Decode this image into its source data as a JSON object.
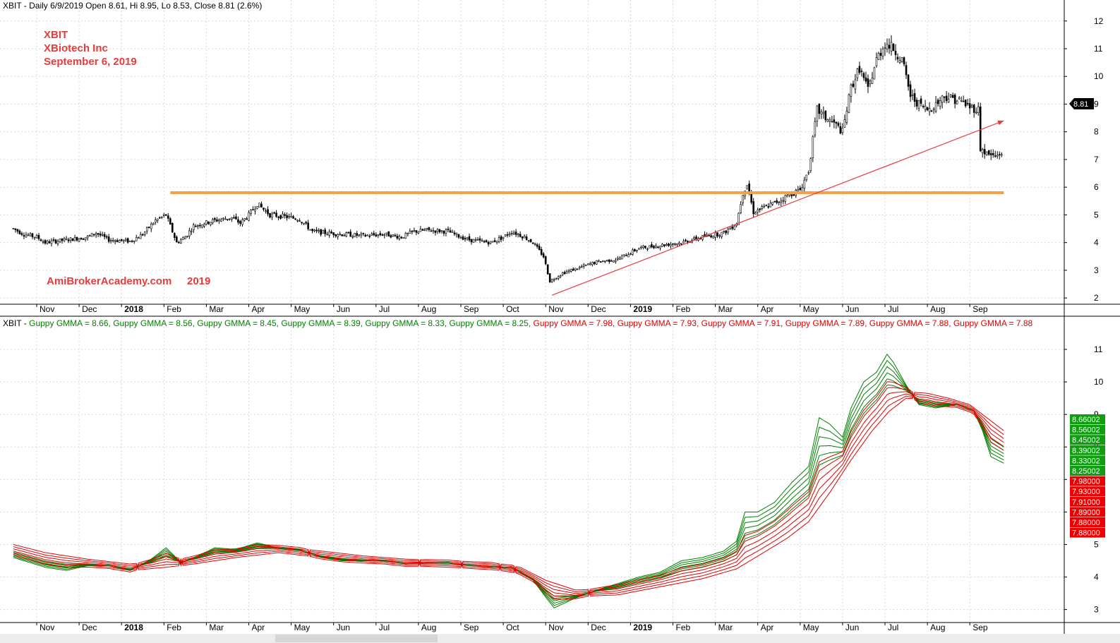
{
  "header": {
    "top": "XBIT - Daily 6/9/2019 Open 8.61, Hi 8.95, Lo 8.53, Close 8.81 (2.6%)",
    "bottom_prefix": "XBIT - ",
    "bottom_items": [
      {
        "text": "Guppy GMMA = 8.66,",
        "color": "#008000"
      },
      {
        "text": "Guppy GMMA = 8.56,",
        "color": "#008000"
      },
      {
        "text": "Guppy GMMA = 8.45,",
        "color": "#008000"
      },
      {
        "text": "Guppy GMMA = 8.39,",
        "color": "#008000"
      },
      {
        "text": "Guppy GMMA = 8.33,",
        "color": "#008000"
      },
      {
        "text": "Guppy GMMA = 8.25,",
        "color": "#008000"
      },
      {
        "text": "Guppy GMMA = 7.98,",
        "color": "#e00000"
      },
      {
        "text": "Guppy GMMA = 7.93,",
        "color": "#e00000"
      },
      {
        "text": "Guppy GMMA = 7.91,",
        "color": "#e00000"
      },
      {
        "text": "Guppy GMMA = 7.89,",
        "color": "#e00000"
      },
      {
        "text": "Guppy GMMA = 7.88,",
        "color": "#e00000"
      },
      {
        "text": "Guppy GMMA = 7.88",
        "color": "#e00000"
      }
    ]
  },
  "annotations": {
    "ticker": "XBIT",
    "company": "XBiotech Inc",
    "date": "September 6, 2019",
    "watermark": "AmiBrokerAcademy.com",
    "watermark_year": "2019",
    "color": "#e63c3c"
  },
  "chart_data": [
    {
      "type": "candlestick",
      "title": "XBIT - Daily 6/9/2019 Open 8.61, Hi 8.95, Lo 8.53, Close 8.81 (2.6%)",
      "x_unit": "months since Nov 2017 tick",
      "x_range": [
        -0.75,
        22.6
      ],
      "ylim": [
        1.8,
        12.3
      ],
      "y_ticks": [
        2,
        3,
        4,
        5,
        6,
        7,
        8,
        9,
        10,
        11,
        12
      ],
      "x_ticks": [
        "Nov",
        "Dec",
        "2018",
        "Feb",
        "Mar",
        "Apr",
        "May",
        "Jun",
        "Jul",
        "Aug",
        "Sep",
        "Oct",
        "Nov",
        "Dec",
        "2019",
        "Feb",
        "Mar",
        "Apr",
        "May",
        "Jun",
        "Jul",
        "Aug",
        "Sep"
      ],
      "price_path": [
        [
          -0.75,
          4.5
        ],
        [
          -0.5,
          4.3
        ],
        [
          -0.2,
          4.2
        ],
        [
          0,
          4.0
        ],
        [
          0.5,
          4.1
        ],
        [
          1,
          4.2
        ],
        [
          1.2,
          4.35
        ],
        [
          1.5,
          4.1
        ],
        [
          2,
          4.05
        ],
        [
          2.3,
          4.3
        ],
        [
          2.6,
          4.8
        ],
        [
          2.85,
          5.0
        ],
        [
          3.1,
          4.0
        ],
        [
          3.3,
          4.2
        ],
        [
          3.5,
          4.6
        ],
        [
          4,
          4.8
        ],
        [
          4.4,
          4.9
        ],
        [
          4.6,
          4.7
        ],
        [
          4.8,
          5.0
        ],
        [
          5,
          5.4
        ],
        [
          5.3,
          5.0
        ],
        [
          5.6,
          4.95
        ],
        [
          6,
          4.85
        ],
        [
          6.3,
          4.4
        ],
        [
          6.6,
          4.35
        ],
        [
          7,
          4.3
        ],
        [
          7.5,
          4.25
        ],
        [
          8,
          4.3
        ],
        [
          8.4,
          4.2
        ],
        [
          8.7,
          4.4
        ],
        [
          9,
          4.45
        ],
        [
          9.5,
          4.4
        ],
        [
          9.8,
          4.2
        ],
        [
          10,
          4.1
        ],
        [
          10.5,
          4.0
        ],
        [
          10.8,
          4.2
        ],
        [
          11,
          4.4
        ],
        [
          11.3,
          4.2
        ],
        [
          11.5,
          4.0
        ],
        [
          11.75,
          3.5
        ],
        [
          11.9,
          2.6
        ],
        [
          12.2,
          2.9
        ],
        [
          12.5,
          3.05
        ],
        [
          13,
          3.3
        ],
        [
          13.5,
          3.4
        ],
        [
          14,
          3.8
        ],
        [
          14.5,
          3.9
        ],
        [
          15,
          4.0
        ],
        [
          15.5,
          4.2
        ],
        [
          16,
          4.35
        ],
        [
          16.3,
          4.7
        ],
        [
          16.45,
          5.8
        ],
        [
          16.55,
          6.1
        ],
        [
          16.7,
          5.1
        ],
        [
          17,
          5.3
        ],
        [
          17.3,
          5.5
        ],
        [
          17.5,
          5.7
        ],
        [
          17.8,
          5.9
        ],
        [
          18,
          6.6
        ],
        [
          18.2,
          8.8
        ],
        [
          18.4,
          8.5
        ],
        [
          18.6,
          8.3
        ],
        [
          18.8,
          8.0
        ],
        [
          19,
          9.6
        ],
        [
          19.2,
          10.3
        ],
        [
          19.4,
          9.5
        ],
        [
          19.6,
          10.6
        ],
        [
          19.8,
          11.2
        ],
        [
          20,
          11.0
        ],
        [
          20.2,
          10.6
        ],
        [
          20.4,
          9.3
        ],
        [
          20.6,
          9.0
        ],
        [
          20.8,
          8.8
        ],
        [
          21,
          9.0
        ],
        [
          21.2,
          9.3
        ],
        [
          21.4,
          9.2
        ],
        [
          21.6,
          9.1
        ],
        [
          21.8,
          8.9
        ],
        [
          22,
          8.8
        ],
        [
          22.05,
          7.4
        ],
        [
          22.2,
          7.2
        ],
        [
          22.4,
          7.1
        ],
        [
          22.6,
          7.3
        ]
      ],
      "horizontal_line": {
        "y": 5.8,
        "x_from": 2.95,
        "x_to": 22.6,
        "color": "#f5a04a"
      },
      "trend_arrow": {
        "from": [
          11.95,
          2.1
        ],
        "to": [
          22.6,
          8.4
        ],
        "color": "#e63c3c"
      },
      "last_value": "8.81"
    },
    {
      "type": "line",
      "title": "XBIT - Guppy GMMA",
      "ylim": [
        2.6,
        11.5
      ],
      "y_ticks": [
        3,
        4,
        5,
        6,
        7,
        8,
        9,
        10,
        11
      ],
      "x_ticks": [
        "Nov",
        "Dec",
        "2018",
        "Feb",
        "Mar",
        "Apr",
        "May",
        "Jun",
        "Jul",
        "Aug",
        "Sep",
        "Oct",
        "Nov",
        "Dec",
        "2019",
        "Feb",
        "Mar",
        "Apr",
        "May",
        "Jun",
        "Jul",
        "Aug",
        "Sep"
      ],
      "series": [
        {
          "name": "Guppy GMMA",
          "color": "#008000",
          "last": 8.66
        },
        {
          "name": "Guppy GMMA",
          "color": "#008000",
          "last": 8.56
        },
        {
          "name": "Guppy GMMA",
          "color": "#008000",
          "last": 8.45
        },
        {
          "name": "Guppy GMMA",
          "color": "#008000",
          "last": 8.39
        },
        {
          "name": "Guppy GMMA",
          "color": "#008000",
          "last": 8.33
        },
        {
          "name": "Guppy GMMA",
          "color": "#008000",
          "last": 8.25
        },
        {
          "name": "Guppy GMMA",
          "color": "#e00000",
          "last": 7.98
        },
        {
          "name": "Guppy GMMA",
          "color": "#e00000",
          "last": 7.93
        },
        {
          "name": "Guppy GMMA",
          "color": "#e00000",
          "last": 7.91
        },
        {
          "name": "Guppy GMMA",
          "color": "#e00000",
          "last": 7.89
        },
        {
          "name": "Guppy GMMA",
          "color": "#e00000",
          "last": 7.88
        },
        {
          "name": "Guppy GMMA",
          "color": "#e00000",
          "last": 7.88
        }
      ],
      "short_path": [
        [
          -0.75,
          4.6
        ],
        [
          0,
          4.3
        ],
        [
          0.5,
          4.2
        ],
        [
          1,
          4.35
        ],
        [
          1.5,
          4.35
        ],
        [
          2,
          4.2
        ],
        [
          2.5,
          4.55
        ],
        [
          2.85,
          4.9
        ],
        [
          3.2,
          4.45
        ],
        [
          3.6,
          4.65
        ],
        [
          4,
          4.9
        ],
        [
          4.5,
          4.85
        ],
        [
          5,
          5.05
        ],
        [
          5.5,
          4.9
        ],
        [
          6,
          4.85
        ],
        [
          6.5,
          4.6
        ],
        [
          7,
          4.5
        ],
        [
          8,
          4.5
        ],
        [
          8.5,
          4.4
        ],
        [
          9,
          4.45
        ],
        [
          9.5,
          4.45
        ],
        [
          10,
          4.35
        ],
        [
          10.5,
          4.3
        ],
        [
          11,
          4.3
        ],
        [
          11.5,
          3.9
        ],
        [
          11.85,
          3.3
        ],
        [
          12,
          3.05
        ],
        [
          12.5,
          3.35
        ],
        [
          13,
          3.6
        ],
        [
          13.5,
          3.8
        ],
        [
          14,
          4.0
        ],
        [
          14.5,
          4.15
        ],
        [
          15,
          4.5
        ],
        [
          15.5,
          4.6
        ],
        [
          16,
          4.8
        ],
        [
          16.3,
          5.1
        ],
        [
          16.5,
          6.0
        ],
        [
          16.8,
          6.0
        ],
        [
          17.2,
          6.3
        ],
        [
          17.6,
          6.9
        ],
        [
          18,
          7.4
        ],
        [
          18.25,
          8.9
        ],
        [
          18.5,
          8.7
        ],
        [
          18.8,
          8.3
        ],
        [
          19,
          9.2
        ],
        [
          19.3,
          10.0
        ],
        [
          19.6,
          10.3
        ],
        [
          19.85,
          10.85
        ],
        [
          20,
          10.6
        ],
        [
          20.3,
          9.9
        ],
        [
          20.6,
          9.3
        ],
        [
          21,
          9.2
        ],
        [
          21.5,
          9.3
        ],
        [
          21.9,
          9.1
        ],
        [
          22.1,
          8.5
        ],
        [
          22.3,
          7.7
        ],
        [
          22.6,
          7.5
        ]
      ],
      "long_path": [
        [
          -0.75,
          4.9
        ],
        [
          0,
          4.65
        ],
        [
          1,
          4.45
        ],
        [
          2,
          4.3
        ],
        [
          2.85,
          4.4
        ],
        [
          3.5,
          4.5
        ],
        [
          4.5,
          4.7
        ],
        [
          5.5,
          4.85
        ],
        [
          6.5,
          4.7
        ],
        [
          7.5,
          4.55
        ],
        [
          8.5,
          4.45
        ],
        [
          9.5,
          4.4
        ],
        [
          10.5,
          4.35
        ],
        [
          11.2,
          4.2
        ],
        [
          11.8,
          3.8
        ],
        [
          12.5,
          3.5
        ],
        [
          13.5,
          3.55
        ],
        [
          14.5,
          3.8
        ],
        [
          15.5,
          4.05
        ],
        [
          16.3,
          4.35
        ],
        [
          17,
          4.9
        ],
        [
          17.5,
          5.3
        ],
        [
          18,
          5.8
        ],
        [
          18.5,
          6.7
        ],
        [
          19,
          7.7
        ],
        [
          19.5,
          8.6
        ],
        [
          19.9,
          9.2
        ],
        [
          20.3,
          9.6
        ],
        [
          20.8,
          9.55
        ],
        [
          21.3,
          9.4
        ],
        [
          21.8,
          9.2
        ],
        [
          22.2,
          8.8
        ],
        [
          22.6,
          8.4
        ]
      ]
    }
  ]
}
